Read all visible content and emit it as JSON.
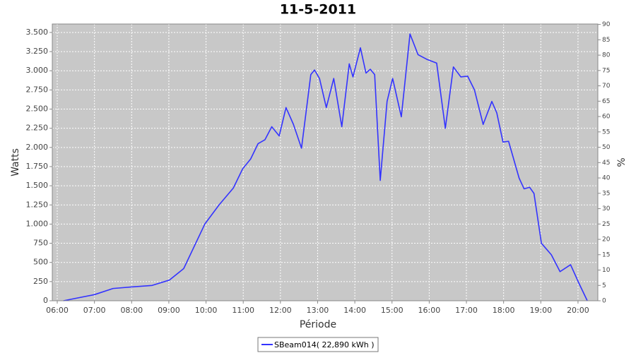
{
  "chart_data": {
    "type": "line",
    "title": "11-5-2011",
    "x_label": "Période",
    "y_label": "Watts",
    "y2_label": "%",
    "x": [
      "06:10",
      "07:00",
      "07:30",
      "08:00",
      "08:33",
      "09:01",
      "09:24",
      "09:58",
      "10:21",
      "10:44",
      "10:59",
      "11:12",
      "11:24",
      "11:35",
      "11:46",
      "11:58",
      "12:09",
      "12:21",
      "12:34",
      "12:49",
      "12:55",
      "13:03",
      "13:14",
      "13:26",
      "13:39",
      "13:51",
      "13:57",
      "14:09",
      "14:18",
      "14:25",
      "14:32",
      "14:41",
      "14:52",
      "15:01",
      "15:15",
      "15:29",
      "15:42",
      "15:56",
      "16:12",
      "16:26",
      "16:39",
      "16:51",
      "17:02",
      "17:13",
      "17:27",
      "17:41",
      "17:49",
      "17:59",
      "18:08",
      "18:25",
      "18:33",
      "18:42",
      "18:49",
      "19:01",
      "19:17",
      "19:31",
      "19:48",
      "20:02",
      "20:15"
    ],
    "series": [
      {
        "name": "SBeam014( 22,890 kWh )",
        "color": "#3333ff",
        "values": [
          0,
          80,
          160,
          180,
          200,
          270,
          420,
          1000,
          1250,
          1470,
          1720,
          1850,
          2050,
          2100,
          2270,
          2150,
          2520,
          2300,
          1990,
          2950,
          3010,
          2900,
          2520,
          2900,
          2270,
          3090,
          2920,
          3300,
          2970,
          3020,
          2950,
          1570,
          2600,
          2900,
          2400,
          3480,
          3210,
          3150,
          3100,
          2250,
          3050,
          2920,
          2930,
          2750,
          2300,
          2600,
          2450,
          2070,
          2080,
          1600,
          1460,
          1480,
          1400,
          750,
          600,
          380,
          470,
          220,
          0
        ]
      }
    ],
    "xlim": [
      "05:52",
      "20:32"
    ],
    "xticks": [
      "06:00",
      "07:00",
      "08:00",
      "09:00",
      "10:00",
      "11:00",
      "12:00",
      "13:00",
      "14:00",
      "15:00",
      "16:00",
      "17:00",
      "18:00",
      "19:00",
      "20:00"
    ],
    "ylim": [
      0,
      3610
    ],
    "yticks": [
      0,
      250,
      500,
      750,
      {
        "value": 1000,
        "label": "1.000"
      },
      {
        "value": 1250,
        "label": "1.250"
      },
      {
        "value": 1500,
        "label": "1.500"
      },
      {
        "value": 1750,
        "label": "1.750"
      },
      {
        "value": 2000,
        "label": "2.000"
      },
      {
        "value": 2250,
        "label": "2.250"
      },
      {
        "value": 2500,
        "label": "2.500"
      },
      {
        "value": 2750,
        "label": "2.750"
      },
      {
        "value": 3000,
        "label": "3.000"
      },
      {
        "value": 3250,
        "label": "3.250"
      },
      {
        "value": 3500,
        "label": "3.500"
      }
    ],
    "y2lim": [
      0,
      90.14
    ],
    "y2ticks": [
      0,
      5,
      10,
      15,
      20,
      25,
      30,
      35,
      40,
      45,
      50,
      55,
      60,
      65,
      70,
      75,
      80,
      85,
      90
    ],
    "grid": true,
    "legend": "bottom"
  }
}
